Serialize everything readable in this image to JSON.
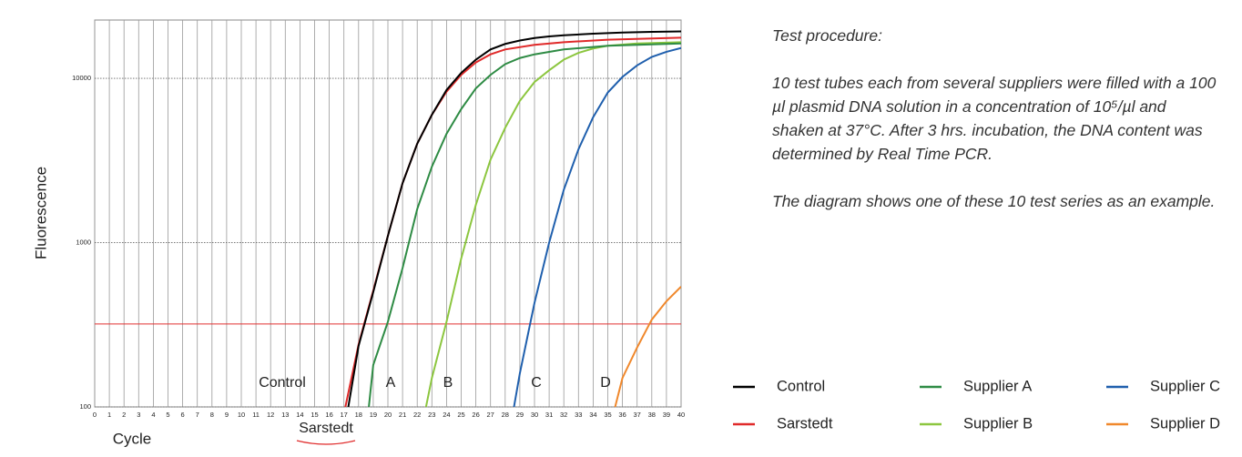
{
  "chart_data": {
    "type": "line",
    "log_y": true,
    "ylabel": "Fluorescence",
    "xlabel": "Cycle",
    "xlim": [
      0,
      40
    ],
    "xticks": [
      0,
      1,
      2,
      3,
      4,
      5,
      6,
      7,
      8,
      9,
      10,
      11,
      12,
      13,
      14,
      15,
      16,
      17,
      18,
      19,
      20,
      21,
      22,
      23,
      24,
      25,
      26,
      27,
      28,
      29,
      30,
      31,
      32,
      33,
      34,
      35,
      36,
      37,
      38,
      39,
      40
    ],
    "ylim": [
      100,
      22650
    ],
    "yticks": [
      100,
      1000,
      10000
    ],
    "grid": true,
    "threshold": 320,
    "threshold_color": "#e03030",
    "series": [
      {
        "name": "Control",
        "color": "#000000",
        "x": [
          17.3,
          18,
          19,
          20,
          21,
          22,
          23,
          24,
          25,
          26,
          27,
          28,
          29,
          30,
          31,
          32,
          34,
          36,
          38,
          40
        ],
        "values": [
          100,
          235,
          500,
          1100,
          2300,
          4000,
          6000,
          8500,
          10800,
          13000,
          15000,
          16200,
          17000,
          17600,
          18000,
          18300,
          18700,
          19000,
          19200,
          19300
        ]
      },
      {
        "name": "Sarstedt",
        "color": "#e02a2a",
        "x": [
          17.1,
          18,
          19,
          20,
          21,
          22,
          23,
          24,
          25,
          26,
          27,
          28,
          30,
          32,
          35,
          40
        ],
        "values": [
          100,
          240,
          510,
          1100,
          2300,
          4000,
          6000,
          8300,
          10500,
          12500,
          14000,
          15000,
          16000,
          16600,
          17200,
          17700
        ]
      },
      {
        "name": "Supplier A",
        "color": "#2e8b44",
        "x": [
          18.7,
          19,
          20,
          21,
          22,
          23,
          24,
          25,
          26,
          27,
          28,
          29,
          30,
          32,
          35,
          40
        ],
        "values": [
          100,
          180,
          330,
          700,
          1600,
          2900,
          4600,
          6500,
          8700,
          10500,
          12200,
          13300,
          14000,
          15000,
          15800,
          16300
        ]
      },
      {
        "name": "Supplier B",
        "color": "#8cc63f",
        "x": [
          22.6,
          23,
          24,
          25,
          26,
          27,
          28,
          29,
          30,
          31,
          32,
          33,
          34,
          35,
          37,
          40
        ],
        "values": [
          100,
          150,
          330,
          800,
          1700,
          3200,
          5000,
          7300,
          9500,
          11200,
          13000,
          14300,
          15200,
          15800,
          16300,
          16600
        ]
      },
      {
        "name": "Supplier C",
        "color": "#1f5fad",
        "x": [
          28.6,
          29,
          30,
          31,
          32,
          33,
          34,
          35,
          36,
          37,
          38,
          39,
          40
        ],
        "values": [
          100,
          160,
          430,
          1000,
          2100,
          3700,
          5800,
          8200,
          10200,
          12000,
          13500,
          14500,
          15300
        ]
      },
      {
        "name": "Supplier D",
        "color": "#f0882c",
        "x": [
          35.5,
          36,
          37,
          38,
          39,
          40
        ],
        "values": [
          100,
          150,
          230,
          340,
          440,
          540
        ]
      }
    ],
    "annotations": [
      "Control",
      "A",
      "B",
      "C",
      "D",
      "Sarstedt"
    ]
  },
  "panel": {
    "title": "Test procedure:",
    "paragraphs": [
      "10 test tubes each from several suppliers were filled with a 100 µl plasmid DNA solution in a concentration of 10⁵/µl and shaken at 37°C. After 3 hrs. incubation, the DNA content was determined by Real Time PCR.",
      "The diagram shows one of these 10 test series as an example."
    ]
  }
}
